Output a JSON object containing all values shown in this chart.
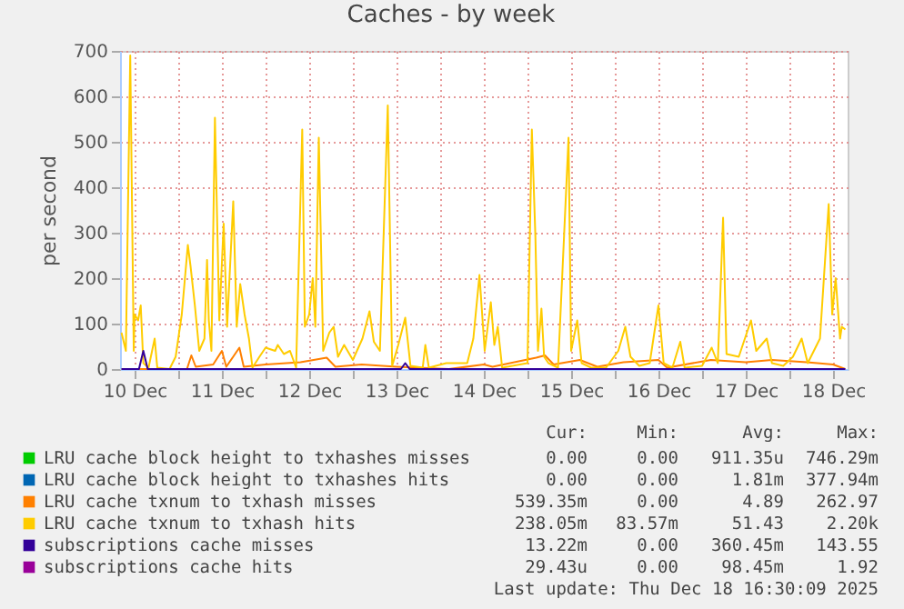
{
  "chart_data": {
    "type": "line",
    "title": "Caches - by week",
    "ylabel": "per second",
    "xlim": [
      "2025-12-10T08:00",
      "2025-12-18T16:00"
    ],
    "ylim": [
      0,
      700
    ],
    "xticks": [
      {
        "value": "2025-12-10T12:00",
        "label": "10 Dec"
      },
      {
        "value": "2025-12-11T12:00",
        "label": "11 Dec"
      },
      {
        "value": "2025-12-12T12:00",
        "label": "12 Dec"
      },
      {
        "value": "2025-12-13T12:00",
        "label": "13 Dec"
      },
      {
        "value": "2025-12-14T12:00",
        "label": "14 Dec"
      },
      {
        "value": "2025-12-15T12:00",
        "label": "15 Dec"
      },
      {
        "value": "2025-12-16T12:00",
        "label": "16 Dec"
      },
      {
        "value": "2025-12-17T12:00",
        "label": "17 Dec"
      },
      {
        "value": "2025-12-18T12:00",
        "label": "18 Dec"
      },
      {
        "value": "2025-12-11T00:00",
        "label": null
      },
      {
        "value": "2025-12-12T00:00",
        "label": null
      },
      {
        "value": "2025-12-13T00:00",
        "label": null
      },
      {
        "value": "2025-12-14T00:00",
        "label": null
      },
      {
        "value": "2025-12-15T00:00",
        "label": null
      },
      {
        "value": "2025-12-16T00:00",
        "label": null
      },
      {
        "value": "2025-12-17T00:00",
        "label": null
      },
      {
        "value": "2025-12-18T00:00",
        "label": null
      }
    ],
    "yticks": [
      0,
      100,
      200,
      300,
      400,
      500,
      600,
      700
    ],
    "grid": true,
    "legend": "bottom",
    "marker": "none",
    "line_style": "solid",
    "series": [
      {
        "name": "LRU cache block height to txhashes misses",
        "color": "#00cc00"
      },
      {
        "name": "LRU cache block height to txhashes hits",
        "color": "#0066b3"
      },
      {
        "name": "LRU cache txnum to txhash misses",
        "color": "#ff8000",
        "x": [
          "2025-12-10T08:24",
          "2025-12-10T19:12",
          "2025-12-11T02:24",
          "2025-12-11T03:36",
          "2025-12-11T04:48",
          "2025-12-11T09:36",
          "2025-12-11T12:00",
          "2025-12-11T13:12",
          "2025-12-11T16:48",
          "2025-12-11T18:00",
          "2025-12-12T00:00",
          "2025-12-12T09:36",
          "2025-12-12T16:48",
          "2025-12-12T19:12",
          "2025-12-13T02:24",
          "2025-12-13T12:00",
          "2025-12-14T02:24",
          "2025-12-14T12:00",
          "2025-12-14T14:24",
          "2025-12-15T02:24",
          "2025-12-15T04:48",
          "2025-12-15T07:12",
          "2025-12-15T14:24",
          "2025-12-15T19:12",
          "2025-12-16T02:24",
          "2025-12-16T12:00",
          "2025-12-16T14:24",
          "2025-12-17T02:24",
          "2025-12-17T12:00",
          "2025-12-17T19:12",
          "2025-12-18T04:48",
          "2025-12-18T12:00",
          "2025-12-18T15:22"
        ],
        "values": [
          0,
          0,
          0,
          30,
          5,
          10,
          40,
          5,
          47,
          5,
          10,
          15,
          25,
          5,
          10,
          5,
          0,
          10,
          5,
          25,
          30,
          10,
          20,
          5,
          15,
          20,
          3,
          20,
          15,
          20,
          15,
          10,
          0
        ]
      },
      {
        "name": "LRU cache txnum to txhash hits",
        "color": "#ffcc00",
        "x": [
          "2025-12-10T08:24",
          "2025-12-10T09:36",
          "2025-12-10T10:48",
          "2025-12-10T11:46",
          "2025-12-10T12:00",
          "2025-12-10T12:58",
          "2025-12-10T13:41",
          "2025-12-10T14:24",
          "2025-12-10T15:50",
          "2025-12-10T17:31",
          "2025-12-10T18:14",
          "2025-12-10T21:36",
          "2025-12-10T23:17",
          "2025-12-11T00:58",
          "2025-12-11T02:38",
          "2025-12-11T03:22",
          "2025-12-11T04:34",
          "2025-12-11T05:46",
          "2025-12-11T07:12",
          "2025-12-11T07:55",
          "2025-12-11T08:24",
          "2025-12-11T09:07",
          "2025-12-11T10:05",
          "2025-12-11T11:17",
          "2025-12-11T12:29",
          "2025-12-11T13:26",
          "2025-12-11T15:07",
          "2025-12-11T16:05",
          "2025-12-11T17:02",
          "2025-12-11T18:14",
          "2025-12-11T19:26",
          "2025-12-11T20:24",
          "2025-12-11T22:19",
          "2025-12-12T00:00",
          "2025-12-12T02:38",
          "2025-12-12T03:22",
          "2025-12-12T05:02",
          "2025-12-12T06:43",
          "2025-12-12T08:24",
          "2025-12-12T10:05",
          "2025-12-12T10:48",
          "2025-12-12T12:00",
          "2025-12-12T12:58",
          "2025-12-12T13:41",
          "2025-12-12T14:38",
          "2025-12-12T15:50",
          "2025-12-12T17:31",
          "2025-12-12T18:43",
          "2025-12-12T19:55",
          "2025-12-12T21:36",
          "2025-12-13T00:00",
          "2025-12-13T02:38",
          "2025-12-13T04:34",
          "2025-12-13T05:46",
          "2025-12-13T07:26",
          "2025-12-13T09:36",
          "2025-12-13T10:48",
          "2025-12-13T12:29",
          "2025-12-13T14:24",
          "2025-12-13T15:50",
          "2025-12-13T19:12",
          "2025-12-13T19:55",
          "2025-12-13T20:53",
          "2025-12-14T01:41",
          "2025-12-14T07:26",
          "2025-12-14T09:07",
          "2025-12-14T10:48",
          "2025-12-14T12:14",
          "2025-12-14T13:55",
          "2025-12-14T14:53",
          "2025-12-14T15:50",
          "2025-12-14T17:02",
          "2025-12-15T00:00",
          "2025-12-15T01:12",
          "2025-12-15T02:10",
          "2025-12-15T02:53",
          "2025-12-15T03:50",
          "2025-12-15T04:34",
          "2025-12-15T05:46",
          "2025-12-15T08:24",
          "2025-12-15T11:17",
          "2025-12-15T12:00",
          "2025-12-15T13:41",
          "2025-12-15T14:53",
          "2025-12-15T17:31",
          "2025-12-15T21:36",
          "2025-12-16T00:58",
          "2025-12-16T02:53",
          "2025-12-16T04:19",
          "2025-12-16T06:43",
          "2025-12-16T09:36",
          "2025-12-16T12:00",
          "2025-12-16T13:26",
          "2025-12-16T15:50",
          "2025-12-16T18:00",
          "2025-12-16T19:12",
          "2025-12-17T00:00",
          "2025-12-17T02:38",
          "2025-12-17T04:19",
          "2025-12-17T05:46",
          "2025-12-17T06:43",
          "2025-12-17T10:05",
          "2025-12-17T13:26",
          "2025-12-17T14:53",
          "2025-12-17T17:46",
          "2025-12-17T19:12",
          "2025-12-17T22:19",
          "2025-12-18T00:58",
          "2025-12-18T03:22",
          "2025-12-18T05:02",
          "2025-12-18T06:43",
          "2025-12-18T08:24",
          "2025-12-18T10:48",
          "2025-12-18T11:46",
          "2025-12-18T12:43",
          "2025-12-18T13:55",
          "2025-12-18T14:24",
          "2025-12-18T15:22"
        ],
        "values": [
          80,
          40,
          690,
          40,
          120,
          107,
          140,
          13,
          3,
          67,
          3,
          0,
          27,
          120,
          273,
          227,
          140,
          40,
          67,
          240,
          107,
          40,
          553,
          107,
          320,
          93,
          369,
          93,
          187,
          120,
          67,
          3,
          27,
          47,
          40,
          53,
          33,
          40,
          3,
          527,
          93,
          120,
          200,
          93,
          509,
          40,
          80,
          93,
          27,
          53,
          20,
          67,
          127,
          60,
          40,
          580,
          7,
          53,
          113,
          7,
          3,
          53,
          3,
          13,
          13,
          67,
          207,
          40,
          147,
          53,
          93,
          3,
          13,
          527,
          293,
          40,
          133,
          27,
          13,
          3,
          509,
          40,
          107,
          13,
          3,
          3,
          40,
          93,
          27,
          7,
          13,
          140,
          13,
          3,
          60,
          3,
          7,
          47,
          13,
          333,
          33,
          27,
          107,
          40,
          67,
          13,
          7,
          27,
          67,
          13,
          40,
          67,
          363,
          120,
          200,
          67,
          93,
          87
        ]
      },
      {
        "name": "subscriptions cache misses",
        "color": "#330099",
        "x": [
          "2025-12-10T08:24",
          "2025-12-10T13:12",
          "2025-12-10T14:24",
          "2025-12-10T15:36",
          "2025-12-13T13:12",
          "2025-12-13T14:24",
          "2025-12-13T15:36",
          "2025-12-18T15:22"
        ],
        "values": [
          0,
          0,
          40,
          0,
          0,
          13,
          0,
          0
        ]
      },
      {
        "name": "subscriptions cache hits",
        "color": "#990099"
      }
    ],
    "annotations": [
      "Cur:",
      "Min:",
      "Avg:",
      "Max:",
      "0.00",
      "0.00",
      "911.35u",
      "746.29m",
      "0.00",
      "0.00",
      "1.81m",
      "377.94m",
      "539.35m",
      "0.00",
      "4.89",
      "262.97",
      "238.05m",
      "83.57m",
      "51.43",
      "2.20k",
      "13.22m",
      "0.00",
      "360.45m",
      "143.55",
      "29.43u",
      "0.00",
      "98.45m",
      "1.92",
      "Last update: Thu Dec 18 16:30:09 2025"
    ]
  }
}
